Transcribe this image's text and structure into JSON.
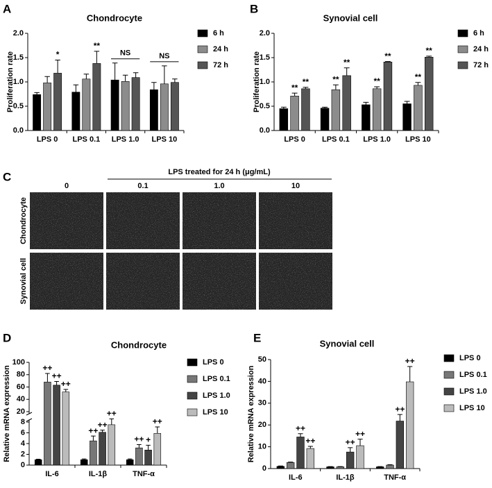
{
  "chart_data": [
    {
      "type": "bar",
      "panel": "A",
      "title": "Chondrocyte",
      "y_label": "Proliferation rate",
      "categories": [
        "LPS 0",
        "LPS 0.1",
        "LPS 1.0",
        "LPS 10"
      ],
      "series": [
        {
          "name": "6 h",
          "color": "#000000",
          "values": [
            0.74,
            0.79,
            1.04,
            0.84
          ],
          "errors": [
            0.04,
            0.15,
            0.35,
            0.15
          ],
          "annotations": [
            null,
            null,
            null,
            null
          ]
        },
        {
          "name": "24 h",
          "color": "#8c8c8c",
          "values": [
            0.98,
            1.06,
            1.01,
            0.96
          ],
          "errors": [
            0.13,
            0.1,
            0.13,
            0.37
          ],
          "annotations": [
            null,
            null,
            null,
            null
          ]
        },
        {
          "name": "72 h",
          "color": "#555555",
          "values": [
            1.18,
            1.38,
            1.09,
            0.99
          ],
          "errors": [
            0.27,
            0.25,
            0.1,
            0.07
          ],
          "annotations": [
            "*",
            "**",
            null,
            null
          ]
        }
      ],
      "group_annotations": [
        null,
        null,
        "NS",
        "NS"
      ],
      "ylim": [
        0,
        2
      ],
      "yticks": [
        {
          "value": 0,
          "label": "0.0"
        },
        0.5,
        {
          "value": 1,
          "label": "1.0"
        },
        1.5,
        {
          "value": 2,
          "label": "2.0"
        }
      ]
    },
    {
      "type": "bar",
      "panel": "B",
      "title": "Synovial cell",
      "y_label": "Proliferation rate",
      "categories": [
        "LPS 0",
        "LPS 0.1",
        "LPS 1.0",
        "LPS 10"
      ],
      "series": [
        {
          "name": "6 h",
          "color": "#000000",
          "values": [
            0.45,
            0.46,
            0.53,
            0.55
          ],
          "errors": [
            0.03,
            0.02,
            0.05,
            0.05
          ],
          "annotations": [
            null,
            null,
            null,
            null
          ]
        },
        {
          "name": "24 h",
          "color": "#8c8c8c",
          "values": [
            0.71,
            0.84,
            0.86,
            0.93
          ],
          "errors": [
            0.06,
            0.1,
            0.04,
            0.06
          ],
          "annotations": [
            "**",
            "**",
            "**",
            "**"
          ]
        },
        {
          "name": "72 h",
          "color": "#555555",
          "values": [
            0.86,
            1.13,
            1.41,
            1.51
          ],
          "errors": [
            0.03,
            0.16,
            0.01,
            0.02
          ],
          "annotations": [
            "**",
            "**",
            "**",
            "**"
          ]
        }
      ],
      "ylim": [
        0,
        2
      ],
      "yticks": [
        {
          "value": 0,
          "label": "0.0"
        },
        0.5,
        {
          "value": 1,
          "label": "1.0"
        },
        1.5,
        {
          "value": 2,
          "label": "2.0"
        }
      ]
    },
    {
      "type": "bar",
      "panel": "D",
      "title": "Chondrocyte",
      "y_label": "Relative mRNA expression",
      "categories": [
        "IL-6",
        "IL-1β",
        "TNF-α"
      ],
      "series": [
        {
          "name": "LPS 0",
          "color": "#000000",
          "values": [
            1.0,
            1.0,
            1.0
          ],
          "errors": [
            0.1,
            0.15,
            0.15
          ],
          "annotations": [
            null,
            null,
            null
          ]
        },
        {
          "name": "LPS 0.1",
          "color": "#777777",
          "values": [
            68,
            4.5,
            3.2
          ],
          "errors": [
            14,
            0.9,
            0.6
          ],
          "annotations": [
            "++",
            "++",
            "++"
          ]
        },
        {
          "name": "LPS 1.0",
          "color": "#444444",
          "values": [
            63,
            6.1,
            2.8
          ],
          "errors": [
            6,
            0.4,
            0.9
          ],
          "annotations": [
            "++",
            "++",
            "+"
          ]
        },
        {
          "name": "LPS 10",
          "color": "#bbbbbb",
          "values": [
            52,
            7.5,
            5.9
          ],
          "errors": [
            4,
            0.8,
            1.2
          ],
          "annotations": [
            "++",
            "++",
            "++"
          ]
        }
      ],
      "ylim": [
        0,
        100
      ],
      "ybreak": [
        8,
        20
      ],
      "yticks": [
        0,
        2,
        4,
        6,
        8,
        20,
        40,
        60,
        80,
        100
      ]
    },
    {
      "type": "bar",
      "panel": "E",
      "title": "Synovial cell",
      "y_label": "Relative mRNA expression",
      "categories": [
        "IL-6",
        "IL-1β",
        "TNF-α"
      ],
      "series": [
        {
          "name": "LPS 0",
          "color": "#000000",
          "values": [
            1.0,
            0.8,
            0.8
          ],
          "errors": [
            0.2,
            0.1,
            0.1
          ],
          "annotations": [
            null,
            null,
            null
          ]
        },
        {
          "name": "LPS 0.1",
          "color": "#777777",
          "values": [
            2.8,
            0.8,
            1.6
          ],
          "errors": [
            0.2,
            0.1,
            0.2
          ],
          "annotations": [
            null,
            null,
            null
          ]
        },
        {
          "name": "LPS 1.0",
          "color": "#444444",
          "values": [
            14.5,
            7.6,
            21.8
          ],
          "errors": [
            1.5,
            2,
            3
          ],
          "annotations": [
            "++",
            "++",
            "++"
          ]
        },
        {
          "name": "LPS 10",
          "color": "#bbbbbb",
          "values": [
            9.2,
            10.5,
            39.8
          ],
          "errors": [
            1,
            3,
            7
          ],
          "annotations": [
            "++",
            "++",
            "++"
          ]
        }
      ],
      "ylim": [
        0,
        50
      ],
      "yticks": [
        0,
        10,
        20,
        30,
        40,
        50
      ]
    }
  ],
  "figure_c": {
    "panel": "C",
    "header": "LPS treated for 24 h (μg/mL)",
    "columns": [
      "0",
      "0.1",
      "1.0",
      "10"
    ],
    "rows": [
      "Chondrocyte",
      "Synovial cell"
    ]
  }
}
